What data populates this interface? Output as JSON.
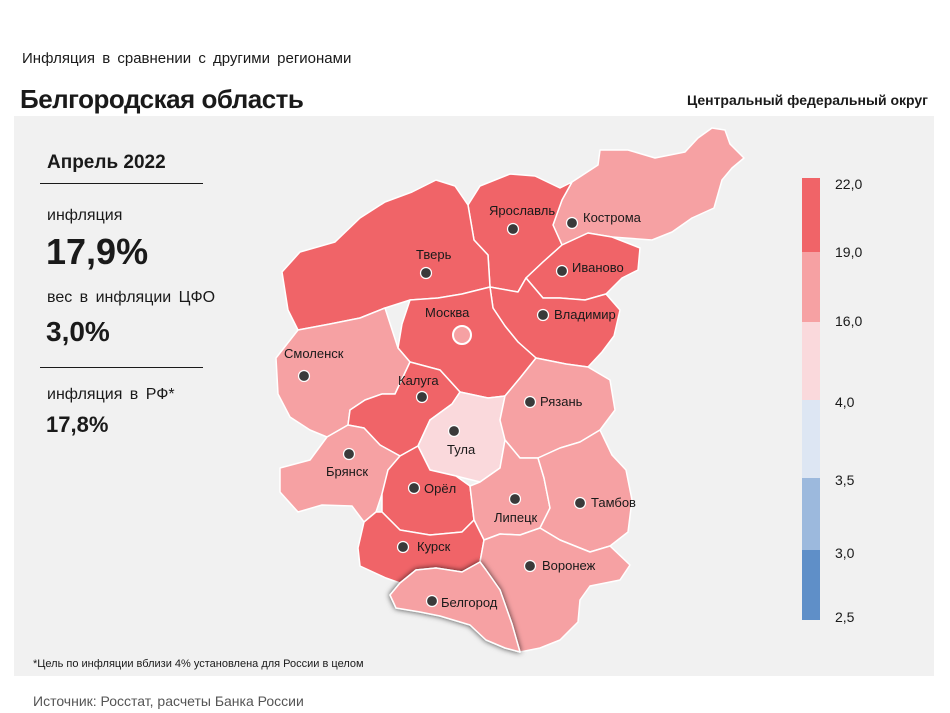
{
  "header": {
    "subtitle": "Инфляция в сравнении с другими регионами",
    "title": "Белгородская область",
    "district": "Центральный федеральный округ"
  },
  "summary": {
    "date": "Апрель 2022",
    "inflation_label": "инфляция",
    "inflation_value": "17,9%",
    "weight_label": "вес в инфляции ЦФО",
    "weight_value": "3,0%",
    "rf_label": "инфляция в РФ*",
    "rf_value": "17,8%"
  },
  "legend": {
    "labels": [
      "22,0",
      "19,0",
      "16,0",
      "4,0",
      "3,5",
      "3,0",
      "2,5"
    ],
    "colors": [
      "#f06468",
      "#f6a1a3",
      "#fad9dc",
      "#dde6f3",
      "#9cb9dd",
      "#5f8fc8"
    ]
  },
  "regions": {
    "tver": "Тверь",
    "yaroslavl": "Ярославль",
    "kostroma": "Кострома",
    "ivanovo": "Иваново",
    "vladimir": "Владимир",
    "moscow": "Москва",
    "smolensk": "Смоленск",
    "kaluga": "Калуга",
    "tula": "Тула",
    "ryazan": "Рязань",
    "bryansk": "Брянск",
    "orel": "Орёл",
    "lipetsk": "Липецк",
    "tambov": "Тамбов",
    "kursk": "Курск",
    "voronezh": "Воронеж",
    "belgorod": "Белгород"
  },
  "region_colors": {
    "high": "#f06468",
    "mid": "#f6a1a3",
    "low": "#fad9dc"
  },
  "footer": {
    "footnote": "*Цель по инфляции вблизи 4% установлена для России в целом",
    "source": "Источник: Росстат, расчеты Банка России"
  }
}
